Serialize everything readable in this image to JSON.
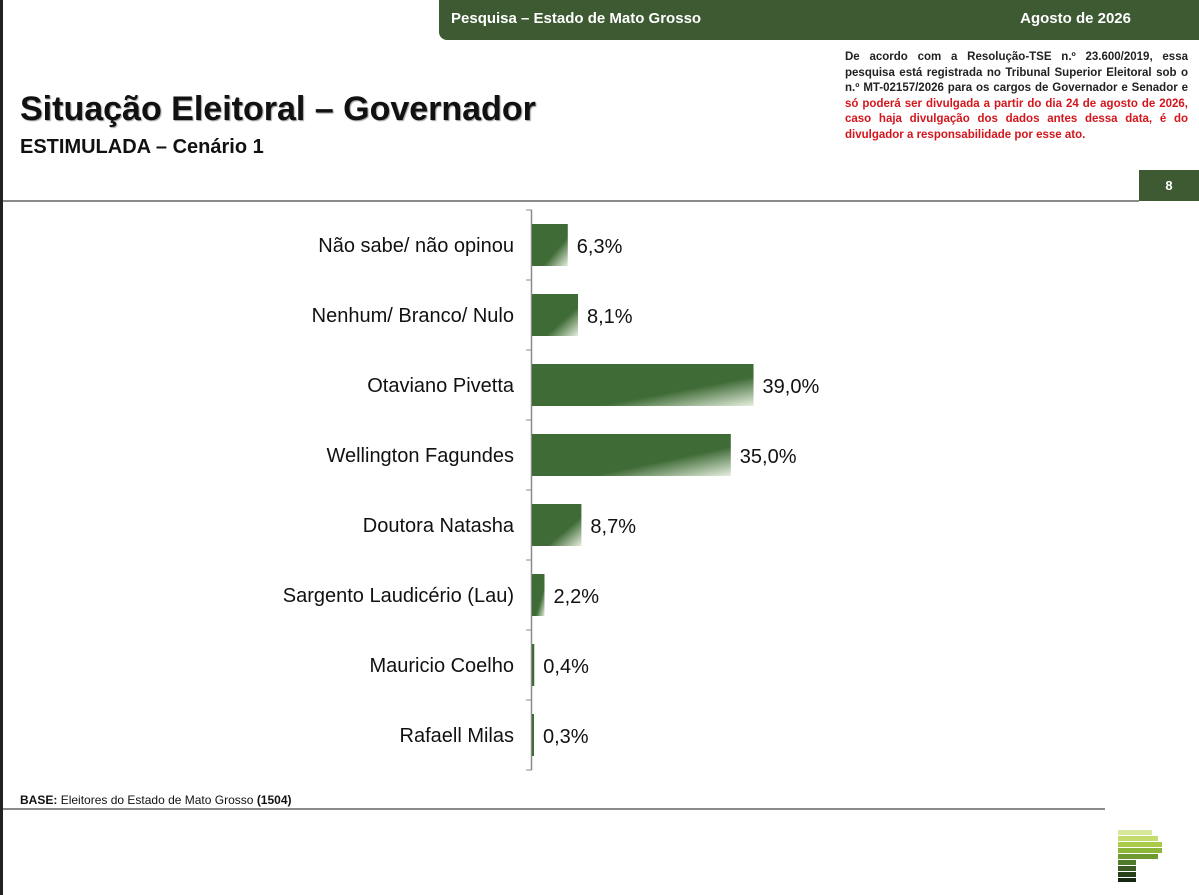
{
  "header": {
    "survey_label": "Pesquisa – Estado de Mato Grosso",
    "date_label": "Agosto de 2026"
  },
  "title": "Situação Eleitoral – Governador",
  "subtitle": "ESTIMULADA – Cenário 1",
  "notice": {
    "black_text": "De acordo com a Resolução-TSE n.º 23.600/2019, essa pesquisa está registrada no Tribunal Superior Eleitoral sob o n.º MT-02157/2026 para os cargos de Governador e Senador e",
    "red_text": "só poderá ser divulgada a partir do dia 24 de agosto de 2026, caso haja divulgação dos dados antes dessa data, é do divulgador a responsabilidade por esse ato."
  },
  "page_number": "8",
  "footer": {
    "base_label": "BASE:",
    "base_text": "Eleitores do Estado de Mato Grosso",
    "base_count": "(1504)"
  },
  "colors": {
    "brand_green": "#3d5a32",
    "bar_green": "#3f6b36",
    "notice_red": "#d4161c"
  },
  "chart_data": {
    "type": "bar",
    "orientation": "horizontal",
    "categories": [
      "Não sabe/ não opinou",
      "Nenhum/ Branco/ Nulo",
      "Otaviano Pivetta",
      "Wellington Fagundes",
      "Doutora Natasha",
      "Sargento Laudicério (Lau)",
      "Mauricio Coelho",
      "Rafaell Milas"
    ],
    "values": [
      6.3,
      8.1,
      39.0,
      35.0,
      8.7,
      2.2,
      0.4,
      0.3
    ],
    "value_labels": [
      "6,3%",
      "8,1%",
      "39,0%",
      "35,0%",
      "8,7%",
      "2,2%",
      "0,4%",
      "0,3%"
    ],
    "title": "",
    "xlabel": "",
    "ylabel": "",
    "xlim": [
      0,
      100
    ],
    "grid": false,
    "legend": "none"
  }
}
